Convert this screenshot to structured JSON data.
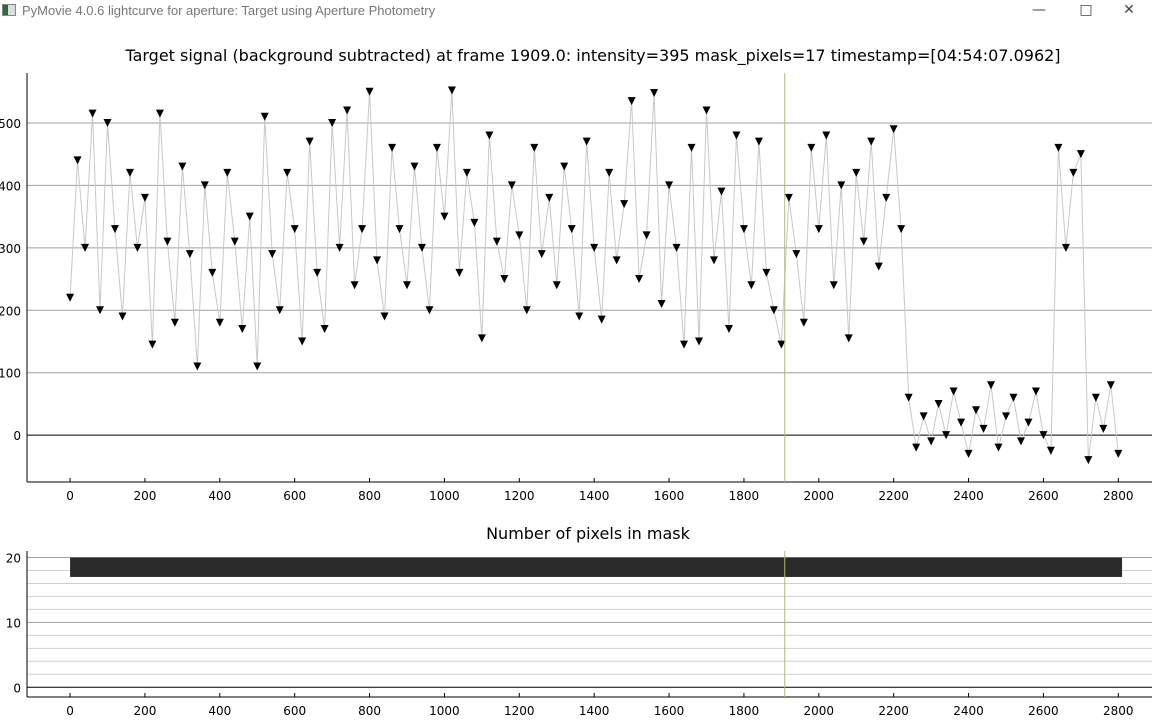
{
  "window": {
    "title": "PyMovie 4.0.6 lightcurve for aperture: Target using Aperture Photometry",
    "minimize_icon": "minimize-icon",
    "maximize_icon": "maximize-icon",
    "close_icon": "close-icon"
  },
  "colors": {
    "points": "#000000",
    "connector": "#c8c8c8",
    "cursor": "#b5b870",
    "mask_bar": "#2b2b2b",
    "grid": "#a0a0a0"
  },
  "chart_data": [
    {
      "type": "scatter",
      "title": "Target signal (background subtracted) at frame 1909.0: intensity=395 mask_pixels=17 timestamp=[04:54:07.0962]",
      "xlabel": "",
      "ylabel": "",
      "xlim": [
        -115,
        2890
      ],
      "ylim": [
        -75,
        580
      ],
      "xticks": [
        0,
        200,
        400,
        600,
        800,
        1000,
        1200,
        1400,
        1600,
        1800,
        2000,
        2200,
        2400,
        2600,
        2800
      ],
      "yticks": [
        0,
        100,
        200,
        300,
        400,
        500
      ],
      "grid": true,
      "marker": "triangle-down",
      "cursor_frame": 1909,
      "x_step": 20,
      "x_start": 0,
      "values": [
        220,
        440,
        300,
        515,
        200,
        500,
        330,
        190,
        420,
        300,
        380,
        145,
        515,
        310,
        180,
        430,
        290,
        110,
        400,
        260,
        180,
        420,
        310,
        170,
        350,
        110,
        510,
        290,
        200,
        420,
        330,
        150,
        470,
        260,
        170,
        500,
        300,
        520,
        240,
        330,
        550,
        280,
        190,
        460,
        330,
        240,
        430,
        300,
        200,
        460,
        350,
        552,
        260,
        420,
        340,
        155,
        480,
        310,
        250,
        400,
        320,
        200,
        460,
        290,
        380,
        240,
        430,
        330,
        190,
        470,
        300,
        185,
        420,
        280,
        370,
        535,
        250,
        320,
        548,
        210,
        400,
        300,
        145,
        460,
        150,
        520,
        280,
        390,
        170,
        480,
        330,
        240,
        470,
        260,
        200,
        145,
        380,
        290,
        180,
        460,
        330,
        480,
        240,
        400,
        155,
        420,
        310,
        470,
        270,
        380,
        490,
        330,
        60,
        -20,
        30,
        -10,
        50,
        0,
        70,
        20,
        -30,
        40,
        10,
        80,
        -20,
        30,
        60,
        -10,
        20,
        70,
        0,
        -25,
        460,
        300,
        420,
        450,
        -40,
        60,
        10,
        80,
        -30
      ]
    },
    {
      "type": "bar",
      "title": "Number of pixels in mask",
      "xlim": [
        -115,
        2890
      ],
      "ylim": [
        -1.5,
        21
      ],
      "xticks": [
        0,
        200,
        400,
        600,
        800,
        1000,
        1200,
        1400,
        1600,
        1800,
        2000,
        2200,
        2400,
        2600,
        2800
      ],
      "yticks": [
        0,
        10,
        20
      ],
      "grid": true,
      "cursor_frame": 1909,
      "x_range": [
        0,
        2810
      ],
      "value": 17,
      "bar_top": 20
    }
  ]
}
